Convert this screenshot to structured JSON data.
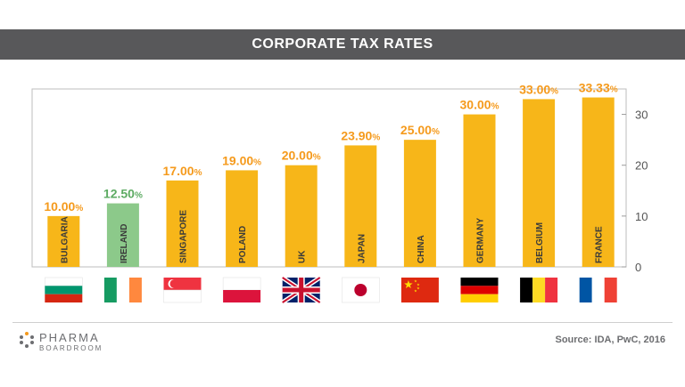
{
  "header": {
    "title": "CORPORATE TAX RATES"
  },
  "footer": {
    "logo_main": "PHARMA",
    "logo_sub": "BOARDROOM",
    "source": "Source: IDA, PwC, 2016"
  },
  "chart_data": {
    "type": "bar",
    "title": "CORPORATE TAX RATES",
    "categories": [
      "BULGARIA",
      "IRELAND",
      "SINGAPORE",
      "POLAND",
      "UK",
      "JAPAN",
      "CHINA",
      "GERMANY",
      "BELGIUM",
      "FRANCE"
    ],
    "values": [
      10.0,
      12.5,
      17.0,
      19.0,
      20.0,
      23.9,
      25.0,
      30.0,
      33.0,
      33.33
    ],
    "value_labels": [
      "10.00",
      "12.50",
      "17.00",
      "19.00",
      "20.00",
      "23.90",
      "25.00",
      "30.00",
      "33.00",
      "33.33"
    ],
    "value_suffix": "%",
    "ylim": [
      0,
      35
    ],
    "yticks": [
      0,
      10,
      20,
      30
    ],
    "yaxis_side": "right",
    "bar_colors": [
      "#f7b619",
      "#8cc98a",
      "#f7b619",
      "#f7b619",
      "#f7b619",
      "#f7b619",
      "#f7b619",
      "#f7b619",
      "#f7b619",
      "#f7b619"
    ],
    "label_colors": [
      "#f59a1c",
      "#5dab63",
      "#f59a1c",
      "#f59a1c",
      "#f59a1c",
      "#f59a1c",
      "#f59a1c",
      "#f59a1c",
      "#f59a1c",
      "#f59a1c"
    ],
    "flag_icons": [
      "bulgaria-flag-icon",
      "ireland-flag-icon",
      "singapore-flag-icon",
      "poland-flag-icon",
      "uk-flag-icon",
      "japan-flag-icon",
      "china-flag-icon",
      "germany-flag-icon",
      "belgium-flag-icon",
      "france-flag-icon"
    ],
    "grid": false
  }
}
